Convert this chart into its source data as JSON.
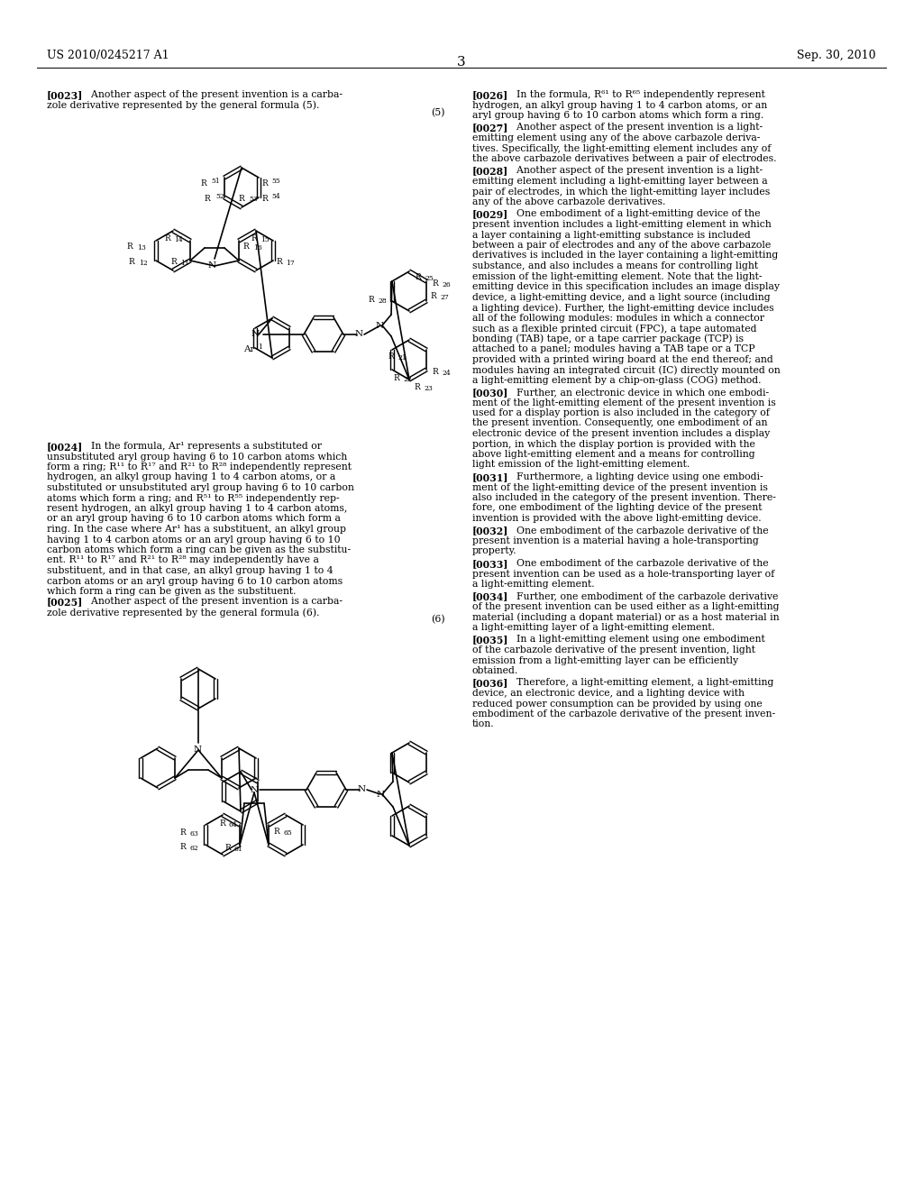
{
  "header_left": "US 2010/0245217 A1",
  "header_right": "Sep. 30, 2010",
  "page_number": "3",
  "bg": "#ffffff",
  "left_paragraphs": [
    {
      "tag": "[0023]",
      "text": "  Another aspect of the present invention is a carba-\nzole derivative represented by the general formula (5)."
    },
    {
      "tag": "[0024]",
      "text": "  In the formula, Ar¹ represents a substituted or\nunsubstituted aryl group having 6 to 10 carbon atoms which\nform a ring; R¹¹ to R¹⁷ and R²¹ to R²⁸ independently represent\nhydrogen, an alkyl group having 1 to 4 carbon atoms, or a\nsubstituted or unsubstituted aryl group having 6 to 10 carbon\natoms which form a ring; and R⁵¹ to R⁵⁵ independently rep-\nresent hydrogen, an alkyl group having 1 to 4 carbon atoms,\nor an aryl group having 6 to 10 carbon atoms which form a\nring. In the case where Ar¹ has a substituent, an alkyl group\nhaving 1 to 4 carbon atoms or an aryl group having 6 to 10\ncarbon atoms which form a ring can be given as the substitu-\nent. R¹¹ to R¹⁷ and R²¹ to R²⁸ may independently have a\nsubstituent, and in that case, an alkyl group having 1 to 4\ncarbon atoms or an aryl group having 6 to 10 carbon atoms\nwhich form a ring can be given as the substituent."
    },
    {
      "tag": "[0025]",
      "text": "  Another aspect of the present invention is a carba-\nzole derivative represented by the general formula (6)."
    }
  ],
  "right_paragraphs": [
    {
      "tag": "[0026]",
      "text": "  In the formula, R⁶¹ to R⁶⁵ independently represent\nhydrogen, an alkyl group having 1 to 4 carbon atoms, or an\naryl group having 6 to 10 carbon atoms which form a ring."
    },
    {
      "tag": "[0027]",
      "text": "  Another aspect of the present invention is a light-\nemitting element using any of the above carbazole deriva-\ntives. Specifically, the light-emitting element includes any of\nthe above carbazole derivatives between a pair of electrodes."
    },
    {
      "tag": "[0028]",
      "text": "  Another aspect of the present invention is a light-\nemitting element including a light-emitting layer between a\npair of electrodes, in which the light-emitting layer includes\nany of the above carbazole derivatives."
    },
    {
      "tag": "[0029]",
      "text": "  One embodiment of a light-emitting device of the\npresent invention includes a light-emitting element in which\na layer containing a light-emitting substance is included\nbetween a pair of electrodes and any of the above carbazole\nderivatives is included in the layer containing a light-emitting\nsubstance, and also includes a means for controlling light\nemission of the light-emitting element. Note that the light-\nemitting device in this specification includes an image display\ndevice, a light-emitting device, and a light source (including\na lighting device). Further, the light-emitting device includes\nall of the following modules: modules in which a connector\nsuch as a flexible printed circuit (FPC), a tape automated\nbonding (TAB) tape, or a tape carrier package (TCP) is\nattached to a panel; modules having a TAB tape or a TCP\nprovided with a printed wiring board at the end thereof; and\nmodules having an integrated circuit (IC) directly mounted on\na light-emitting element by a chip-on-glass (COG) method."
    },
    {
      "tag": "[0030]",
      "text": "  Further, an electronic device in which one embodi-\nment of the light-emitting element of the present invention is\nused for a display portion is also included in the category of\nthe present invention. Consequently, one embodiment of an\nelectronic device of the present invention includes a display\nportion, in which the display portion is provided with the\nabove light-emitting element and a means for controlling\nlight emission of the light-emitting element."
    },
    {
      "tag": "[0031]",
      "text": "  Furthermore, a lighting device using one embodi-\nment of the light-emitting device of the present invention is\nalso included in the category of the present invention. There-\nfore, one embodiment of the lighting device of the present\ninvention is provided with the above light-emitting device."
    },
    {
      "tag": "[0032]",
      "text": "  One embodiment of the carbazole derivative of the\npresent invention is a material having a hole-transporting\nproperty."
    },
    {
      "tag": "[0033]",
      "text": "  One embodiment of the carbazole derivative of the\npresent invention can be used as a hole-transporting layer of\na light-emitting element."
    },
    {
      "tag": "[0034]",
      "text": "  Further, one embodiment of the carbazole derivative\nof the present invention can be used either as a light-emitting\nmaterial (including a dopant material) or as a host material in\na light-emitting layer of a light-emitting element."
    },
    {
      "tag": "[0035]",
      "text": "  In a light-emitting element using one embodiment\nof the carbazole derivative of the present invention, light\nemission from a light-emitting layer can be efficiently\nobtained."
    },
    {
      "tag": "[0036]",
      "text": "  Therefore, a light-emitting element, a light-emitting\ndevice, an electronic device, and a lighting device with\nreduced power consumption can be provided by using one\nembodiment of the carbazole derivative of the present inven-\ntion."
    }
  ]
}
